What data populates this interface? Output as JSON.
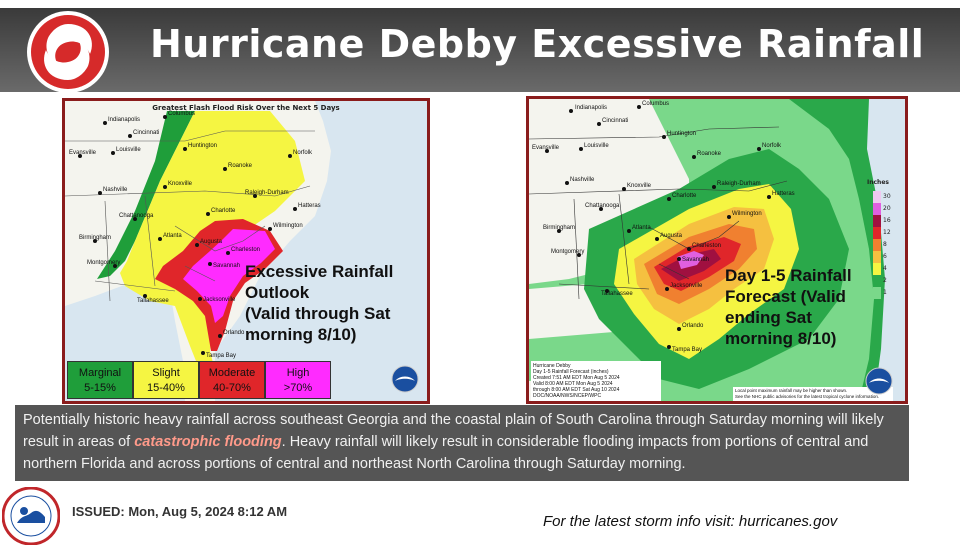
{
  "header": {
    "title": "Hurricane Debby Excessive Rainfall"
  },
  "left_map": {
    "map_title": "Greatest Flash Flood Risk Over the Next 5 Days",
    "callout": [
      "Excessive Rainfall",
      "Outlook",
      "(Valid through Sat",
      "morning 8/10)"
    ],
    "legend": [
      {
        "label": "Marginal",
        "range": "5-15%",
        "color": "#1f9e3a"
      },
      {
        "label": "Slight",
        "range": "15-40%",
        "color": "#f5f542"
      },
      {
        "label": "Moderate",
        "range": "40-70%",
        "color": "#e0262a"
      },
      {
        "label": "High",
        "range": ">70%",
        "color": "#ff2bff"
      }
    ],
    "cities": [
      "Indianapolis",
      "Columbus",
      "Cincinnati",
      "Huntington",
      "Evansville",
      "Louisville",
      "Nashville",
      "Knoxville",
      "Roanoke",
      "Norfolk",
      "Raleigh-Durham",
      "Charlotte",
      "Hatteras",
      "Wilmington",
      "Chattanooga",
      "Birmingham",
      "Atlanta",
      "Augusta",
      "Charleston",
      "Savannah",
      "Montgomery",
      "Tallahassee",
      "Jacksonville",
      "Orlando",
      "Tampa Bay"
    ]
  },
  "right_map": {
    "callout": [
      "Day 1-5 Rainfall",
      "Forecast (Valid",
      "ending Sat",
      "morning 8/10)"
    ],
    "scale_label": "Inches",
    "scale": [
      {
        "value": "30",
        "color": "#f0c8f0"
      },
      {
        "value": "20",
        "color": "#e060e0"
      },
      {
        "value": "16",
        "color": "#a01040"
      },
      {
        "value": "12",
        "color": "#e0262a"
      },
      {
        "value": "8",
        "color": "#f08030"
      },
      {
        "value": "6",
        "color": "#f5c040"
      },
      {
        "value": "4",
        "color": "#f5f542"
      },
      {
        "value": "2",
        "color": "#2aa84a"
      },
      {
        "value": "1",
        "color": "#7ad88a"
      }
    ],
    "footer_lines": [
      "Hurricane Debby",
      "Day 1-5 Rainfall Forecast (inches)",
      "Created 7:51 AM EDT Mon Aug 5 2024",
      "Valid 8:00 AM EDT Mon Aug 5 2024",
      "through 8:00 AM EDT Sat Aug 10 2024",
      "DOC/NOAA/NWS/NCEP/WPC"
    ],
    "note": [
      "Local point maximum rainfall may be higher than shown.",
      "See the NHC public advisories for the latest tropical cyclone information."
    ]
  },
  "description": {
    "part1": "Potentially historic heavy rainfall across southeast Georgia and the coastal plain of South Carolina through Saturday morning will likely result in areas of ",
    "highlight": "catastrophic flooding",
    "part2": ". Heavy rainfall will likely result in considerable flooding impacts from portions of central and northern Florida and across portions of central and northeast North Carolina through Saturday morning."
  },
  "footer": {
    "issued": "ISSUED: Mon, Aug 5, 2024 8:12 AM",
    "link": "For the latest storm info visit:  hurricanes.gov"
  },
  "colors": {
    "header_bg": "#4a4a4a",
    "panel_border": "#8a1c1c",
    "highlight_text": "#ff9a8a",
    "text_box_bg": "#555555"
  },
  "icons": [
    "hurricane-logo-icon",
    "noaa-logo-icon",
    "nws-logo-icon"
  ]
}
